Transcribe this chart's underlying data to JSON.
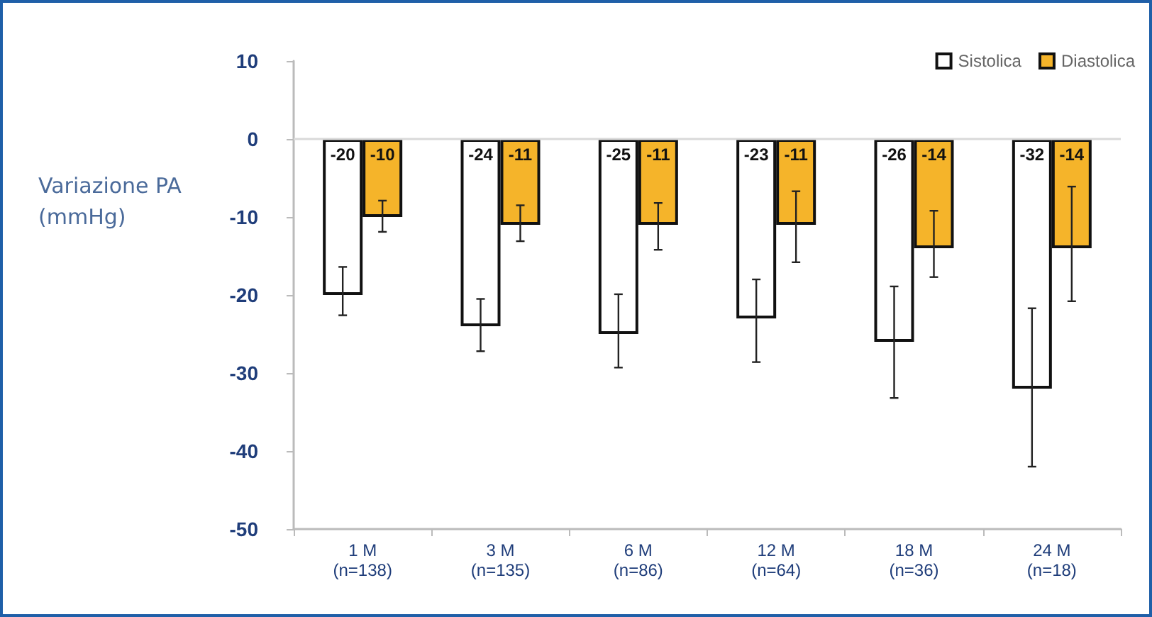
{
  "chart_data": {
    "type": "bar",
    "ylabel": "Variazione PA\n(mmHg)",
    "categories": [
      "1 M\n(n=138)",
      "3 M\n(n=135)",
      "6 M\n(n=86)",
      "12 M\n(n=64)",
      "18 M\n(n=36)",
      "24 M\n(n=18)"
    ],
    "series": [
      {
        "name": "Sistolica",
        "color": "#ffffff",
        "values": [
          -20,
          -24,
          -25,
          -23,
          -26,
          -32
        ],
        "errors": [
          [
            -22.6,
            -16.4
          ],
          [
            -27.2,
            -20.5
          ],
          [
            -29.3,
            -19.9
          ],
          [
            -28.6,
            -18.0
          ],
          [
            -33.2,
            -18.9
          ],
          [
            -42.0,
            -21.7
          ]
        ]
      },
      {
        "name": "Diastolica",
        "color": "#f5b42a",
        "values": [
          -10,
          -11,
          -11,
          -11,
          -14,
          -14
        ],
        "errors": [
          [
            -11.9,
            -7.9
          ],
          [
            -13.1,
            -8.5
          ],
          [
            -14.2,
            -8.2
          ],
          [
            -15.8,
            -6.7
          ],
          [
            -17.7,
            -9.2
          ],
          [
            -20.8,
            -6.1
          ]
        ]
      }
    ],
    "ylim": [
      -50,
      10
    ],
    "yticks": [
      -50,
      -40,
      -30,
      -20,
      -10,
      0,
      10
    ],
    "ref_lines": [
      {
        "axis": "y",
        "value": 0,
        "color": "#d9d9d9"
      }
    ],
    "data_labels": true,
    "legend": "top right",
    "grid": false
  }
}
